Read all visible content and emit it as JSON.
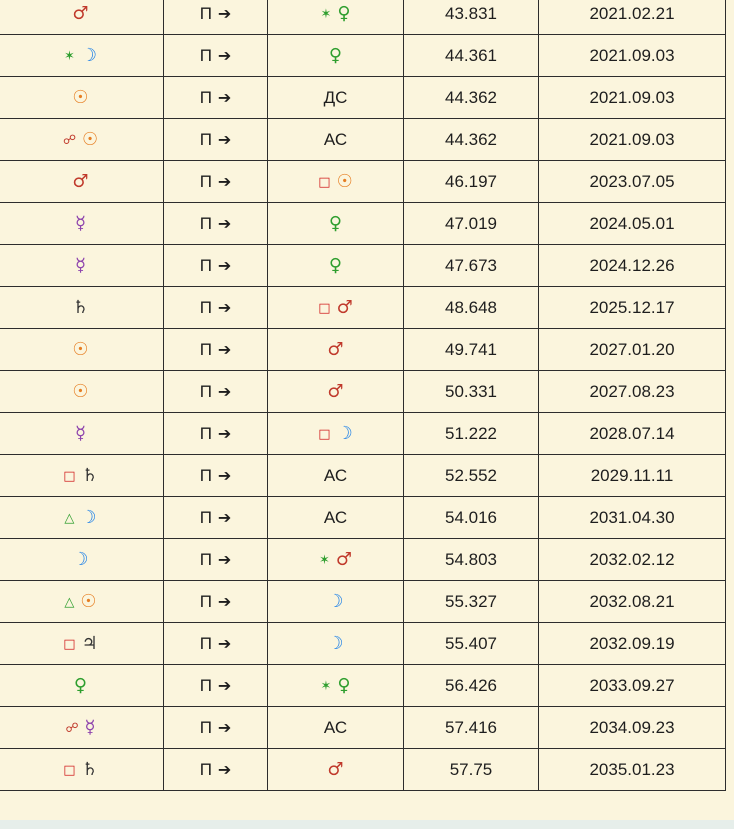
{
  "colors": {
    "mars": "#c0392b",
    "moon": "#1a7fe8",
    "sun": "#e67e22",
    "venus": "#2e9e2e",
    "mercury": "#8e44ad",
    "saturn": "#333333",
    "jupiter": "#333333",
    "sextile": "#2e9e2e",
    "square": "#d01c1c",
    "trine": "#2e9e2e",
    "opposition": "#c0392b",
    "text": "#1e1e1e",
    "background": "#fbf5dd"
  },
  "direction_label": "П",
  "arrow_glyph": "➔",
  "rows": [
    {
      "from_aspect": "",
      "from": "♂",
      "from_color": "#c0392b",
      "to_aspect": "✶",
      "to": "♀",
      "to_color": "#2e9e2e",
      "to_aspect_color": "#2e9e2e",
      "age": "43.831",
      "date": "2021.02.21"
    },
    {
      "from_aspect": "✶",
      "from": "☽",
      "from_color": "#1a7fe8",
      "from_aspect_color": "#2e9e2e",
      "to_aspect": "",
      "to": "♀",
      "to_color": "#2e9e2e",
      "age": "44.361",
      "date": "2021.09.03"
    },
    {
      "from_aspect": "",
      "from": "☉",
      "from_color": "#e67e22",
      "to_aspect": "",
      "to": "ДС",
      "to_color": "#1e1e1e",
      "age": "44.362",
      "date": "2021.09.03"
    },
    {
      "from_aspect": "☍",
      "from": "☉",
      "from_color": "#e67e22",
      "from_aspect_color": "#c0392b",
      "to_aspect": "",
      "to": "АС",
      "to_color": "#1e1e1e",
      "age": "44.362",
      "date": "2021.09.03"
    },
    {
      "from_aspect": "",
      "from": "♂",
      "from_color": "#c0392b",
      "to_aspect": "□",
      "to": "☉",
      "to_color": "#e67e22",
      "to_aspect_color": "#d01c1c",
      "age": "46.197",
      "date": "2023.07.05"
    },
    {
      "from_aspect": "",
      "from": "☿",
      "from_color": "#8e44ad",
      "to_aspect": "",
      "to": "♀",
      "to_color": "#2e9e2e",
      "age": "47.019",
      "date": "2024.05.01"
    },
    {
      "from_aspect": "",
      "from": "☿",
      "from_color": "#8e44ad",
      "to_aspect": "",
      "to": "♀",
      "to_color": "#2e9e2e",
      "age": "47.673",
      "date": "2024.12.26"
    },
    {
      "from_aspect": "",
      "from": "♄",
      "from_color": "#333333",
      "to_aspect": "□",
      "to": "♂",
      "to_color": "#c0392b",
      "to_aspect_color": "#d01c1c",
      "age": "48.648",
      "date": "2025.12.17"
    },
    {
      "from_aspect": "",
      "from": "☉",
      "from_color": "#e67e22",
      "to_aspect": "",
      "to": "♂",
      "to_color": "#c0392b",
      "age": "49.741",
      "date": "2027.01.20"
    },
    {
      "from_aspect": "",
      "from": "☉",
      "from_color": "#e67e22",
      "to_aspect": "",
      "to": "♂",
      "to_color": "#c0392b",
      "age": "50.331",
      "date": "2027.08.23"
    },
    {
      "from_aspect": "",
      "from": "☿",
      "from_color": "#8e44ad",
      "to_aspect": "□",
      "to": "☽",
      "to_color": "#1a7fe8",
      "to_aspect_color": "#d01c1c",
      "age": "51.222",
      "date": "2028.07.14"
    },
    {
      "from_aspect": "□",
      "from": "♄",
      "from_color": "#333333",
      "from_aspect_color": "#d01c1c",
      "to_aspect": "",
      "to": "АС",
      "to_color": "#1e1e1e",
      "age": "52.552",
      "date": "2029.11.11"
    },
    {
      "from_aspect": "△",
      "from": "☽",
      "from_color": "#1a7fe8",
      "from_aspect_color": "#2e9e2e",
      "to_aspect": "",
      "to": "АС",
      "to_color": "#1e1e1e",
      "age": "54.016",
      "date": "2031.04.30"
    },
    {
      "from_aspect": "",
      "from": "☽",
      "from_color": "#1a7fe8",
      "to_aspect": "✶",
      "to": "♂",
      "to_color": "#c0392b",
      "to_aspect_color": "#2e9e2e",
      "age": "54.803",
      "date": "2032.02.12"
    },
    {
      "from_aspect": "△",
      "from": "☉",
      "from_color": "#e67e22",
      "from_aspect_color": "#2e9e2e",
      "to_aspect": "",
      "to": "☽",
      "to_color": "#1a7fe8",
      "age": "55.327",
      "date": "2032.08.21"
    },
    {
      "from_aspect": "□",
      "from": "♃",
      "from_color": "#333333",
      "from_aspect_color": "#d01c1c",
      "to_aspect": "",
      "to": "☽",
      "to_color": "#1a7fe8",
      "age": "55.407",
      "date": "2032.09.19"
    },
    {
      "from_aspect": "",
      "from": "♀",
      "from_color": "#2e9e2e",
      "to_aspect": "✶",
      "to": "♀",
      "to_color": "#2e9e2e",
      "to_aspect_color": "#2e9e2e",
      "age": "56.426",
      "date": "2033.09.27"
    },
    {
      "from_aspect": "☍",
      "from": "☿",
      "from_color": "#8e44ad",
      "from_aspect_color": "#c0392b",
      "to_aspect": "",
      "to": "АС",
      "to_color": "#1e1e1e",
      "age": "57.416",
      "date": "2034.09.23"
    },
    {
      "from_aspect": "□",
      "from": "♄",
      "from_color": "#333333",
      "from_aspect_color": "#d01c1c",
      "to_aspect": "",
      "to": "♂",
      "to_color": "#c0392b",
      "age": "57.75",
      "date": "2035.01.23"
    }
  ]
}
